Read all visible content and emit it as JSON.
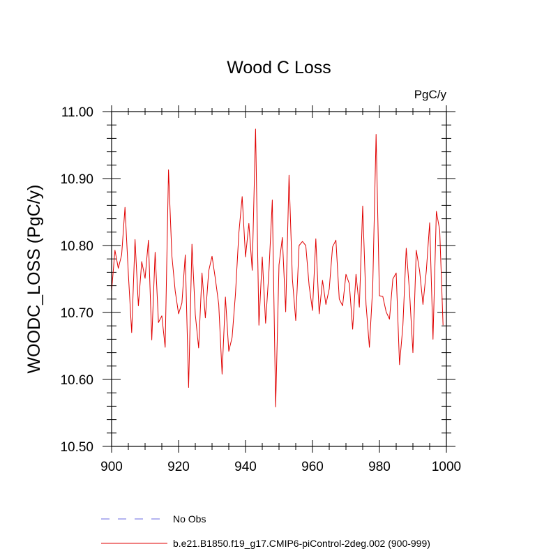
{
  "chart_data": {
    "type": "line",
    "title": "Wood C Loss",
    "units": "PgC/y",
    "ylabel": "WOODC_LOSS  (PgC/y)",
    "xlabel": "",
    "xlim": [
      900,
      1000
    ],
    "ylim": [
      10.5,
      11.0
    ],
    "xticks": [
      900,
      920,
      940,
      960,
      980,
      1000
    ],
    "xtick_labels": [
      "900",
      "920",
      "940",
      "960",
      "980",
      "1000"
    ],
    "yticks": [
      10.5,
      10.6,
      10.7,
      10.8,
      10.9,
      11.0
    ],
    "ytick_labels": [
      "10.50",
      "10.60",
      "10.70",
      "10.80",
      "10.90",
      "11.00"
    ],
    "grid": false,
    "legend": [
      {
        "name": "No Obs",
        "color": "#6a6ae0",
        "style": "dashed"
      },
      {
        "name": "b.e21.B1850.f19_g17.CMIP6-piControl-2deg.002 (900-999)",
        "color": "#e00000",
        "style": "solid"
      }
    ],
    "series": [
      {
        "name": "b.e21.B1850.f19_g17.CMIP6-piControl-2deg.002 (900-999)",
        "color": "#e00000",
        "x": [
          900,
          901,
          902,
          903,
          904,
          905,
          906,
          907,
          908,
          909,
          910,
          911,
          912,
          913,
          914,
          915,
          916,
          917,
          918,
          919,
          920,
          921,
          922,
          923,
          924,
          925,
          926,
          927,
          928,
          929,
          930,
          931,
          932,
          933,
          934,
          935,
          936,
          937,
          938,
          939,
          940,
          941,
          942,
          943,
          944,
          945,
          946,
          947,
          948,
          949,
          950,
          951,
          952,
          953,
          954,
          955,
          956,
          957,
          958,
          959,
          960,
          961,
          962,
          963,
          964,
          965,
          966,
          967,
          968,
          969,
          970,
          971,
          972,
          973,
          974,
          975,
          976,
          977,
          978,
          979,
          980,
          981,
          982,
          983,
          984,
          985,
          986,
          987,
          988,
          989,
          990,
          991,
          992,
          993,
          994,
          995,
          996,
          997,
          998,
          999
        ],
        "values": [
          10.732,
          10.793,
          10.766,
          10.786,
          10.857,
          10.758,
          10.67,
          10.809,
          10.71,
          10.776,
          10.751,
          10.808,
          10.659,
          10.79,
          10.685,
          10.695,
          10.648,
          10.913,
          10.785,
          10.732,
          10.698,
          10.714,
          10.786,
          10.588,
          10.802,
          10.697,
          10.647,
          10.759,
          10.692,
          10.762,
          10.784,
          10.75,
          10.712,
          10.608,
          10.723,
          10.642,
          10.663,
          10.728,
          10.818,
          10.873,
          10.783,
          10.833,
          10.763,
          10.974,
          10.681,
          10.783,
          10.684,
          10.762,
          10.868,
          10.559,
          10.771,
          10.812,
          10.701,
          10.905,
          10.75,
          10.688,
          10.8,
          10.806,
          10.8,
          10.74,
          10.703,
          10.81,
          10.698,
          10.748,
          10.712,
          10.735,
          10.798,
          10.808,
          10.72,
          10.71,
          10.757,
          10.743,
          10.675,
          10.757,
          10.708,
          10.859,
          10.712,
          10.648,
          10.739,
          10.966,
          10.725,
          10.724,
          10.701,
          10.69,
          10.75,
          10.759,
          10.622,
          10.68,
          10.796,
          10.73,
          10.64,
          10.793,
          10.762,
          10.712,
          10.762,
          10.834,
          10.66,
          10.851,
          10.823,
          10.681
        ]
      }
    ]
  }
}
